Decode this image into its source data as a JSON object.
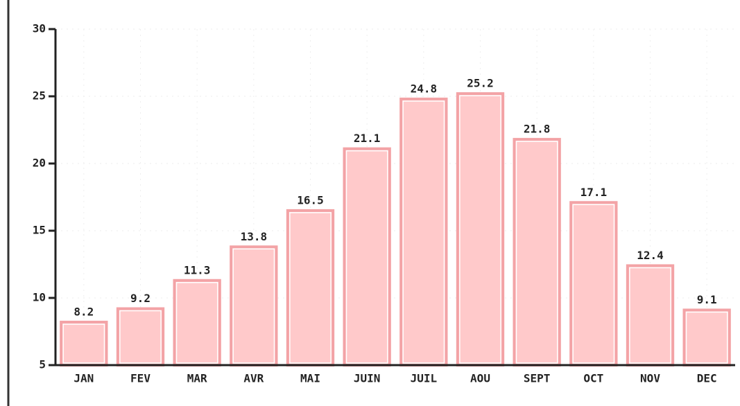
{
  "chart_data": {
    "type": "bar",
    "categories": [
      "JAN",
      "FEV",
      "MAR",
      "AVR",
      "MAI",
      "JUIN",
      "JUIL",
      "AOU",
      "SEPT",
      "OCT",
      "NOV",
      "DEC"
    ],
    "values": [
      8.2,
      9.2,
      11.3,
      13.8,
      16.5,
      21.1,
      24.8,
      25.2,
      21.8,
      17.1,
      12.4,
      9.1
    ],
    "color": "#ffc9ca",
    "edge_color": "#f3a3a6",
    "ylim": [
      5,
      30
    ],
    "yticks": [
      5,
      10,
      15,
      20,
      25,
      30
    ],
    "grid": true
  }
}
